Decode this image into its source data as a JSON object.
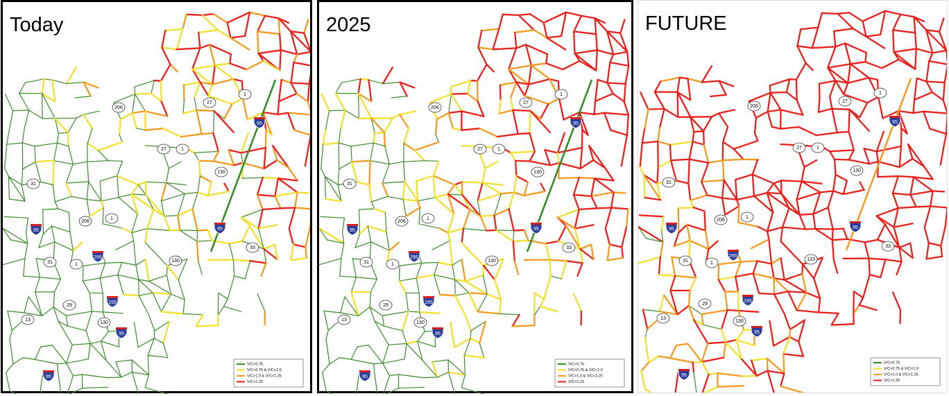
{
  "panels": [
    {
      "title": "Today",
      "shields": [
        "206",
        "27",
        "1",
        "95",
        "27",
        "1",
        "130",
        "31",
        "206",
        "1",
        "95",
        "95",
        "33",
        "295",
        "31",
        "1",
        "130",
        "29",
        "195",
        "13",
        "130",
        "95",
        "95"
      ],
      "legend": [
        "V/C<0.75",
        "V/C>0.75 & V/C<1.0",
        "V/C>1.0 & V/C<1.25",
        "V/C>1.25"
      ]
    },
    {
      "title": "2025",
      "shields": [
        "206",
        "27",
        "1",
        "95",
        "27",
        "1",
        "130",
        "31",
        "206",
        "1",
        "95",
        "95",
        "33",
        "295",
        "31",
        "1",
        "130",
        "29",
        "195",
        "13",
        "130",
        "95",
        "95"
      ],
      "legend": [
        "V/C<0.75",
        "V/C>0.75 & V/C<1.0",
        "V/C>1.0 & V/C<1.25",
        "V/C>1.25"
      ]
    },
    {
      "title": "FUTURE",
      "shields": [
        "206",
        "27",
        "1",
        "95",
        "27",
        "1",
        "130",
        "31",
        "206",
        "1",
        "95",
        "95",
        "33",
        "295",
        "31",
        "1",
        "133",
        "29",
        "195",
        "13",
        "130",
        "95",
        "95"
      ],
      "legend": [
        "V/C<0.75",
        "V/C>0.75 & V/C<1.0",
        "V/C>1.0 & V/C<1.25",
        "V/C>1.25"
      ]
    }
  ]
}
